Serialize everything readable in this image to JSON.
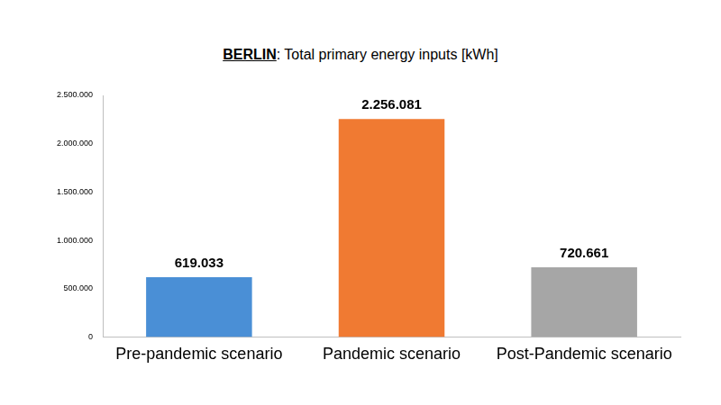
{
  "chart_data": {
    "type": "bar",
    "title": "BERLIN: Total primary energy inputs [kWh]",
    "categories": [
      "Pre-pandemic scenario",
      "Pandemic scenario",
      "Post-Pandemic scenario"
    ],
    "values": [
      619033,
      2256081,
      720661
    ],
    "value_labels": [
      "619.033",
      "2.256.081",
      "720.661"
    ],
    "colors": [
      "#4a8fd6",
      "#f07a32",
      "#a6a6a6"
    ],
    "ylim": [
      0,
      2500000
    ],
    "yticks": [
      0,
      {
        "value": 500000,
        "label": "500.000"
      },
      {
        "value": 1000000,
        "label": "1.000.000"
      },
      {
        "value": 1500000,
        "label": "1.500.000"
      },
      {
        "value": 2000000,
        "label": "2.000.000"
      },
      {
        "value": 2500000,
        "label": "2.500.000"
      }
    ],
    "grid": false,
    "data_labels": true
  }
}
